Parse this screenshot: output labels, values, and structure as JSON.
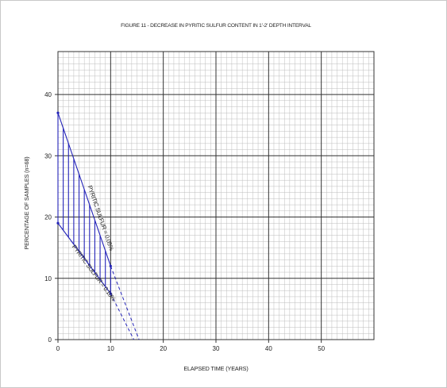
{
  "chart_data": {
    "type": "line",
    "title": "FIGURE 11 - DECREASE IN PYRITIC SULFUR CONTENT IN 1'-2' DEPTH INTERVAL",
    "xlabel": "ELAPSED TIME (YEARS)",
    "ylabel": "PERCENTAGE OF SAMPLES (n=68)",
    "xlim": [
      0,
      60
    ],
    "ylim": [
      0,
      47
    ],
    "x_ticks": [
      0,
      10,
      20,
      30,
      40,
      50
    ],
    "y_ticks": [
      0,
      10,
      20,
      30,
      40
    ],
    "grid": true,
    "series": [
      {
        "name": "PYRITIC SULFUR = 0.05%",
        "x": [
          0,
          10
        ],
        "y": [
          37,
          12
        ],
        "extrapolated": {
          "x": [
            10,
            15.4
          ],
          "y": [
            12,
            0
          ]
        },
        "color": "#2323b8"
      },
      {
        "name": "PYRITIC SULFUR = 0.10%",
        "x": [
          0,
          10
        ],
        "y": [
          19,
          7.5
        ],
        "extrapolated": {
          "x": [
            10,
            14.4
          ],
          "y": [
            7.5,
            0
          ]
        },
        "color": "#2323b8"
      }
    ],
    "shaded_region": {
      "x_from": 0,
      "x_to": 10,
      "between": "series",
      "style": "vertical-hatch",
      "color": "#2323b8"
    }
  }
}
